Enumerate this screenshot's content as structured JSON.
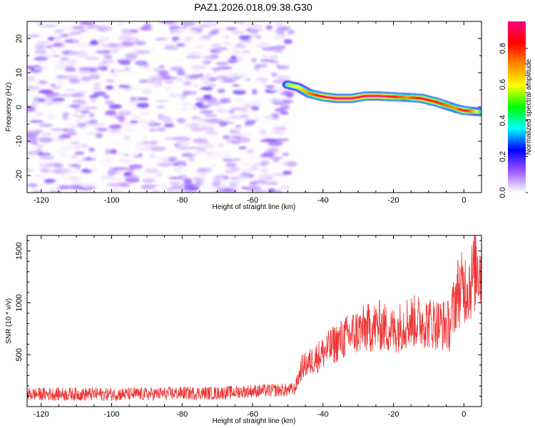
{
  "title": "PAZ1.2026.018.09.38.G30",
  "chart_data": [
    {
      "type": "heatmap",
      "name": "spectrogram",
      "xlabel": "Height of straight line (km)",
      "ylabel": "Frequency (Hz)",
      "xlim": [
        -124,
        5
      ],
      "ylim": [
        -25,
        25
      ],
      "xticks": [
        -120,
        -100,
        -80,
        -60,
        -40,
        -20,
        0
      ],
      "yticks": [
        -20,
        -10,
        0,
        10,
        20
      ],
      "colorbar": {
        "label": "Normalized spectral amplitude",
        "range": [
          0,
          0.95
        ],
        "ticks": [
          0.0,
          0.2,
          0.4,
          0.6,
          0.8
        ],
        "tick_labels": [
          "0.0",
          "0.2",
          "0.4",
          "0.6",
          "0.8"
        ],
        "colormap": [
          "#ffffff",
          "#9b59ff",
          "#0000ff",
          "#00ffff",
          "#00ff00",
          "#ffff00",
          "#ff8800",
          "#ff0000",
          "#ff0080"
        ]
      },
      "noise_region": {
        "x_range": [
          -124,
          -49
        ],
        "amplitude_range": [
          0.0,
          0.15
        ],
        "description_value": "low-amplitude noise"
      },
      "signal_trace": {
        "x": [
          -50,
          -47,
          -44,
          -40,
          -36,
          -32,
          -28,
          -24,
          -20,
          -16,
          -12,
          -8,
          -5,
          -2,
          0,
          5
        ],
        "frequency": [
          6.5,
          5.8,
          4.0,
          3.0,
          2.5,
          2.5,
          3.2,
          3.2,
          3.0,
          2.8,
          2.5,
          1.5,
          0.5,
          -0.5,
          -1.0,
          -1.5
        ],
        "amplitude": [
          0.55,
          0.6,
          0.7,
          0.9,
          0.95,
          0.95,
          0.9,
          0.95,
          0.85,
          0.7,
          0.9,
          0.85,
          0.75,
          0.7,
          0.9,
          0.5
        ]
      }
    },
    {
      "type": "line",
      "name": "snr",
      "xlabel": "Height of straight line (km)",
      "ylabel": "SNR (10 * v/v)",
      "xlim": [
        -124,
        5
      ],
      "ylim": [
        0,
        1650
      ],
      "xticks": [
        -120,
        -100,
        -80,
        -60,
        -40,
        -20,
        0
      ],
      "yticks": [
        500,
        1000,
        1500
      ],
      "color": "#ee3333",
      "series": [
        {
          "name": "SNR",
          "x": [
            -124,
            -110,
            -100,
            -90,
            -80,
            -70,
            -60,
            -50,
            -48,
            -46,
            -44,
            -40,
            -36,
            -32,
            -28,
            -24,
            -20,
            -16,
            -12,
            -8,
            -4,
            -2,
            0,
            2,
            4,
            5
          ],
          "values": [
            120,
            120,
            120,
            120,
            130,
            130,
            150,
            160,
            170,
            380,
            420,
            520,
            620,
            700,
            750,
            780,
            730,
            820,
            820,
            800,
            780,
            1100,
            1150,
            1200,
            1400,
            1250
          ]
        }
      ]
    }
  ]
}
